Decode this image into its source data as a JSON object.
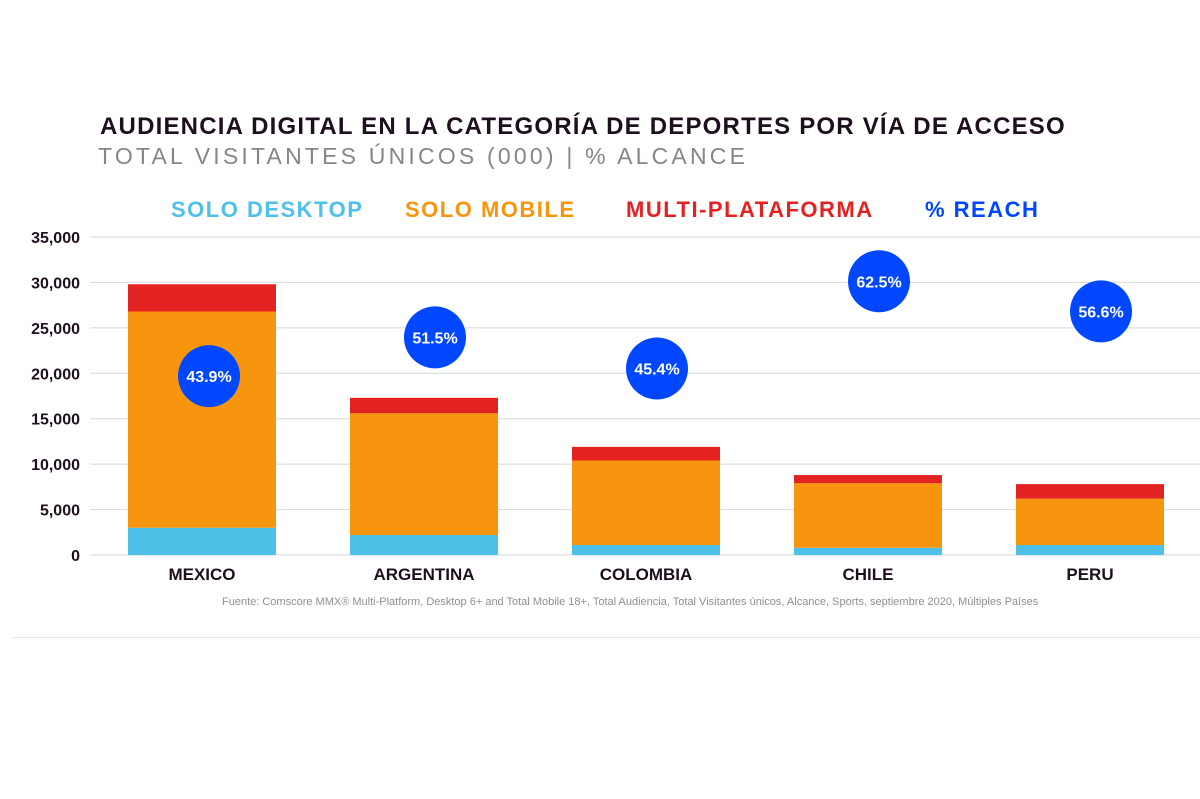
{
  "title": "AUDIENCIA DIGITAL EN LA CATEGORÍA DE DEPORTES POR VÍA DE ACCESO",
  "subtitle": "TOTAL VISITANTES ÚNICOS (000) | % ALCANCE",
  "source": "Fuente: Comscore MMX® Multi-Platform, Desktop 6+ and Total Mobile 18+, Total Audiencia, Total Visitantes únicos, Alcance, Sports, septiembre 2020, Múltiples Países",
  "legend": [
    {
      "label": "SOLO DESKTOP",
      "color": "#4fc0e8"
    },
    {
      "label": "SOLO MOBILE",
      "color": "#f7960e"
    },
    {
      "label": "MULTI-PLATAFORMA",
      "color": "#e32222"
    },
    {
      "label": "% REACH",
      "color": "#0047ff"
    }
  ],
  "chart_data": {
    "type": "bar",
    "stacked": true,
    "categories": [
      "MEXICO",
      "ARGENTINA",
      "COLOMBIA",
      "CHILE",
      "PERU"
    ],
    "series": [
      {
        "name": "SOLO DESKTOP",
        "color": "#4fc0e8",
        "values": [
          3000,
          2200,
          1100,
          800,
          1100
        ]
      },
      {
        "name": "SOLO MOBILE",
        "color": "#f7960e",
        "values": [
          23800,
          13400,
          9300,
          7100,
          5100
        ]
      },
      {
        "name": "MULTI-PLATAFORMA",
        "color": "#e32222",
        "values": [
          3000,
          1700,
          1500,
          900,
          1600
        ]
      }
    ],
    "reach": {
      "name": "% REACH",
      "color": "#0047ff",
      "values": [
        43.9,
        51.5,
        45.4,
        62.5,
        56.6
      ],
      "labels": [
        "43.9%",
        "51.5%",
        "45.4%",
        "62.5%",
        "56.6%"
      ]
    },
    "yticks": [
      0,
      5000,
      10000,
      15000,
      20000,
      25000,
      30000,
      35000
    ],
    "ytick_labels": [
      "0",
      "5,000",
      "10,000",
      "15,000",
      "20,000",
      "25,000",
      "30,000",
      "35,000"
    ],
    "ylim": [
      0,
      35000
    ],
    "grid": true
  }
}
